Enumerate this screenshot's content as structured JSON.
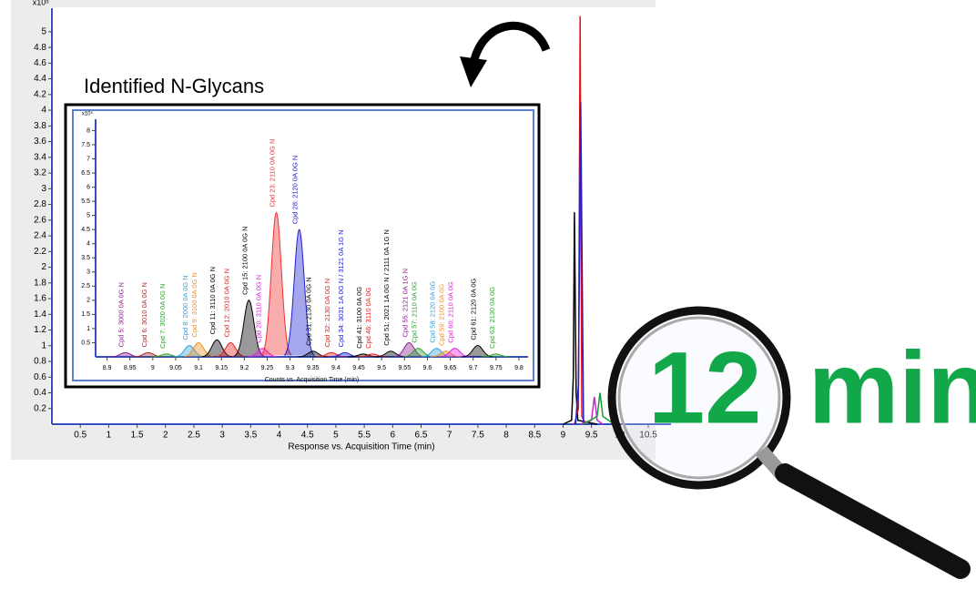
{
  "chart_data": [
    {
      "type": "chromatogram",
      "y_multiplier": "x10⁵",
      "x_label": "Response vs. Acquisition Time (min)",
      "xlim": [
        0,
        10.9
      ],
      "ylim": [
        0,
        5.3
      ],
      "xticks": [
        0.5,
        1,
        1.5,
        2,
        2.5,
        3,
        3.5,
        4,
        4.5,
        5,
        5.5,
        6,
        6.5,
        7,
        7.5,
        8,
        8.5,
        9,
        9.5,
        10,
        10.5
      ],
      "yticks": [
        0.2,
        0.4,
        0.6,
        0.8,
        1,
        1.2,
        1.4,
        1.6,
        1.8,
        2,
        2.2,
        2.4,
        2.6,
        2.8,
        3,
        3.2,
        3.4,
        3.6,
        3.8,
        4,
        4.2,
        4.4,
        4.6,
        4.8,
        5
      ],
      "series": [
        {
          "color": "#000000",
          "x": [
            9.0,
            9.15,
            9.18,
            9.2,
            9.23,
            9.26,
            9.6
          ],
          "values": [
            0,
            0.05,
            0.6,
            2.7,
            0.4,
            0.05,
            0
          ]
        },
        {
          "color": "#e81010",
          "x": [
            9.2,
            9.27,
            9.3,
            9.33,
            9.4
          ],
          "values": [
            0,
            0.2,
            5.2,
            0.1,
            0
          ]
        },
        {
          "color": "#2020d0",
          "x": [
            9.22,
            9.27,
            9.31,
            9.36
          ],
          "values": [
            0,
            0.5,
            4.1,
            0
          ]
        },
        {
          "color": "#d020d0",
          "x": [
            9.3,
            9.5,
            9.55,
            9.6,
            9.7
          ],
          "values": [
            0,
            0.05,
            0.35,
            0.05,
            0
          ]
        },
        {
          "color": "#10a030",
          "x": [
            9.35,
            9.6,
            9.65,
            9.7,
            9.9
          ],
          "values": [
            0,
            0.1,
            0.4,
            0.1,
            0
          ]
        }
      ]
    },
    {
      "type": "peaks",
      "title": "Identified N-Glycans",
      "y_multiplier": "x10⁵",
      "x_label": "Counts vs. Acquisition Time (min)",
      "xlim": [
        8.875,
        9.82
      ],
      "ylim": [
        0,
        8.4
      ],
      "xticks": [
        8.9,
        8.95,
        9,
        9.05,
        9.1,
        9.15,
        9.2,
        9.25,
        9.3,
        9.35,
        9.4,
        9.45,
        9.5,
        9.55,
        9.6,
        9.65,
        9.7,
        9.75,
        9.8
      ],
      "yticks": [
        0.5,
        1,
        1.5,
        2,
        2.5,
        3,
        3.5,
        4,
        4.5,
        5,
        5.5,
        6,
        6.5,
        7,
        7.5,
        8
      ],
      "peak_labels": [
        "Cpd 5: 3000 0A 0G N",
        "Cpd 6: 3010 0A 0G N",
        "Cpd 7: 3020 0A 0G N",
        "Cpd 8: 2000 0A 0G N",
        "Cpd 9: 3100 0A 0G N",
        "Cpd 11: 3110 0A 0G N",
        "Cpd 12: 2010 0A 0G N",
        "Cpd 15: 2100 0A 0G N",
        "Cpd 20: 3110 0A 0G N",
        "Cpd 23: 2110 0A 0G N",
        "Cpd 28: 2120 0A 0G N",
        "Cpd 31: 2130 0A 0G N",
        "Cpd 32: 2130 0A 0G N",
        "Cpd 34: 3031 1A 0G N / 3121 0A 1G N",
        "Cpd 41: 3100 0A 0G",
        "Cpd 46: 3110 0A 0G",
        "Cpd 51: 2021 1A 0G N / 2111 0A 1G N",
        "Cpd 55: 2121 0A 1G N",
        "Cpd 57: 2110 0A 0G",
        "Cpd 58: 2120 0A 0G",
        "Cpd 59: 2100 0A 0G",
        "Cpd 60: 2110 0A 0G",
        "Cpd 61: 2120 0A 0G",
        "Cpd 63: 2130 0A 0G"
      ],
      "colors": [
        "#8a2090",
        "#a03030",
        "#30a030",
        "#30a0e0",
        "#f09020",
        "#000000",
        "#e02020",
        "#000000",
        "#e020e0",
        "#f03030",
        "#2020d0",
        "#000000",
        "#e02020",
        "#2020d0",
        "#000000",
        "#e02020",
        "#000000",
        "#8a2090",
        "#30a030",
        "#30a0e0",
        "#f09020",
        "#e020e0",
        "#000000",
        "#30a030"
      ],
      "x": [
        8.94,
        8.99,
        9.03,
        9.08,
        9.1,
        9.14,
        9.17,
        9.21,
        9.24,
        9.27,
        9.32,
        9.35,
        9.39,
        9.42,
        9.46,
        9.48,
        9.52,
        9.56,
        9.58,
        9.62,
        9.64,
        9.66,
        9.71,
        9.75
      ],
      "values": [
        0.15,
        0.15,
        0.1,
        0.4,
        0.5,
        0.6,
        0.5,
        2.0,
        0.3,
        5.1,
        4.5,
        0.2,
        0.15,
        0.15,
        0.1,
        0.1,
        0.2,
        0.5,
        0.3,
        0.3,
        0.2,
        0.3,
        0.4,
        0.1
      ]
    }
  ],
  "callout": "12 min"
}
